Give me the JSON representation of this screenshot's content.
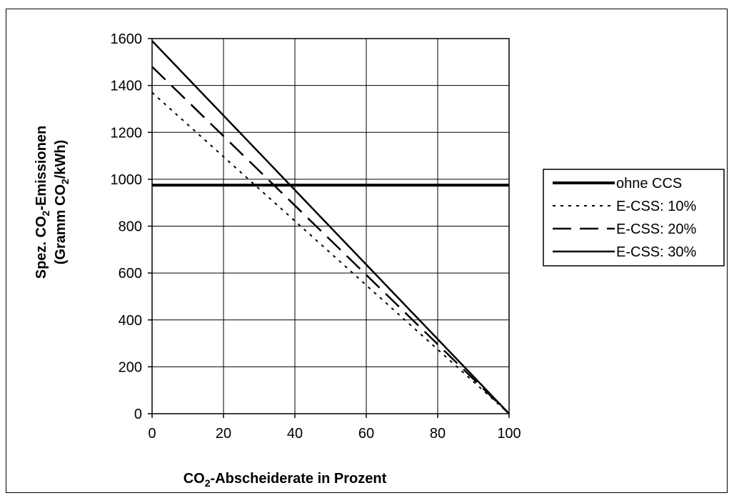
{
  "chart_data": {
    "type": "line",
    "x_title": {
      "pre": "CO",
      "sub": "2",
      "post": "-Abscheiderate in Prozent"
    },
    "y_title_line1": {
      "pre": "Spez. CO",
      "sub": "2",
      "post": "-Emissionen"
    },
    "y_title_line2": {
      "pre": "(Gramm CO",
      "sub": "2",
      "post": "/kWh)"
    },
    "xlim": [
      0,
      100
    ],
    "ylim": [
      0,
      1600
    ],
    "x_ticks": [
      "0",
      "20",
      "40",
      "60",
      "80",
      "100"
    ],
    "y_ticks": [
      "0",
      "200",
      "400",
      "600",
      "800",
      "1000",
      "1200",
      "1400",
      "1600"
    ],
    "grid": true,
    "legend_position": "right",
    "series": [
      {
        "name": "ohne CCS",
        "style": "solid-thick",
        "color": "#000000",
        "x": [
          0,
          100
        ],
        "y": [
          975,
          975
        ]
      },
      {
        "name": "E-CSS: 10%",
        "style": "dotted",
        "color": "#000000",
        "x": [
          0,
          100
        ],
        "y": [
          1370,
          0
        ]
      },
      {
        "name": "E-CSS: 20%",
        "style": "dashed",
        "color": "#000000",
        "x": [
          0,
          100
        ],
        "y": [
          1480,
          0
        ]
      },
      {
        "name": "E-CSS: 30%",
        "style": "solid",
        "color": "#000000",
        "x": [
          0,
          100
        ],
        "y": [
          1590,
          0
        ]
      }
    ]
  }
}
